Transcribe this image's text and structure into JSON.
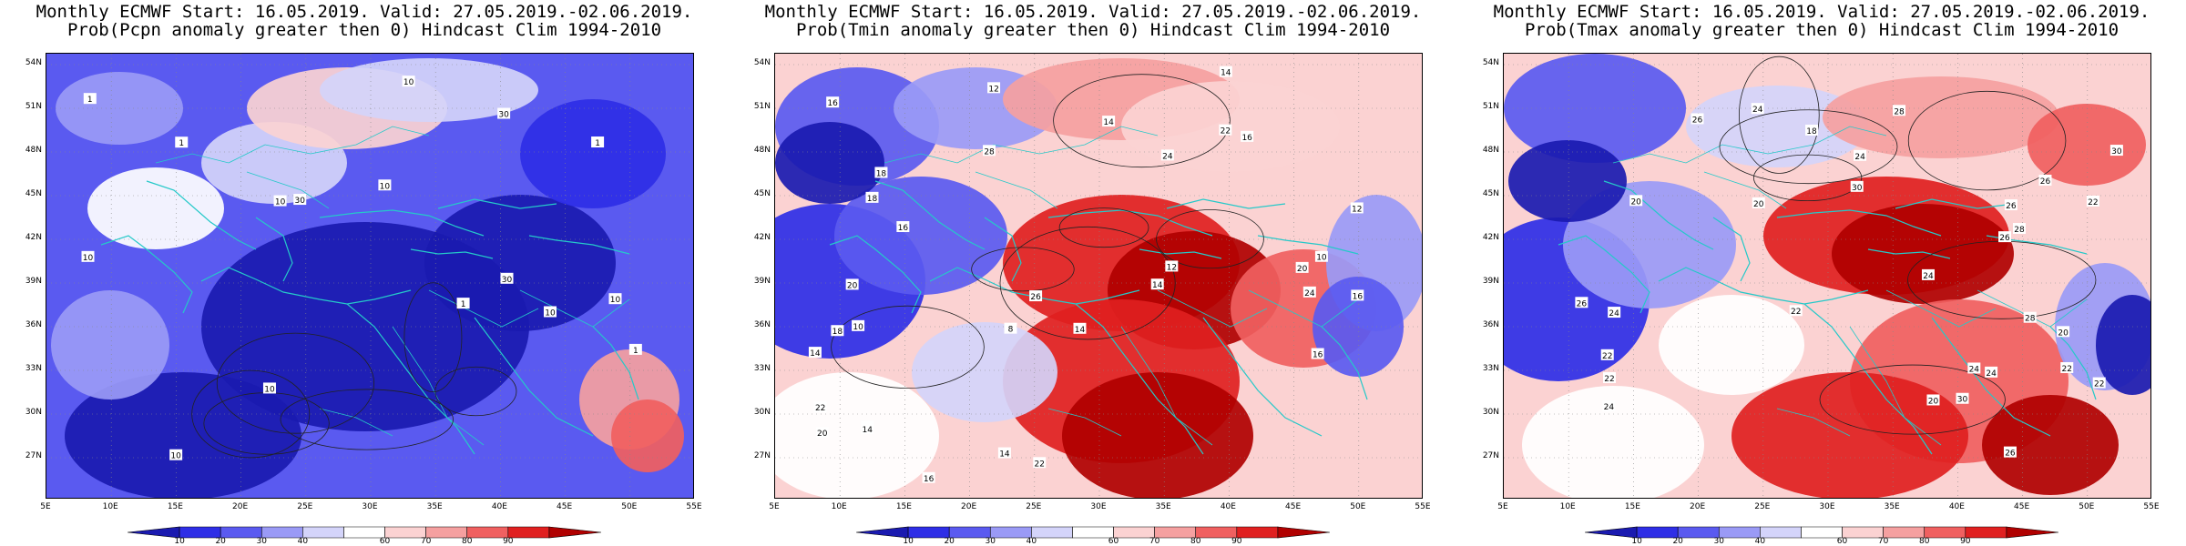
{
  "panels": [
    {
      "title_line1": "Monthly ECMWF Start: 16.05.2019. Valid: 27.05.2019.-02.06.2019.",
      "title_line2": "Prob(Pcpn anomaly greater then 0) Hindcast Clim 1994-2010",
      "variable": "Pcpn",
      "dominant_tone": "blue"
    },
    {
      "title_line1": "Monthly ECMWF Start: 16.05.2019. Valid: 27.05.2019.-02.06.2019.",
      "title_line2": "Prob(Tmin anomaly greater then 0) Hindcast Clim 1994-2010",
      "variable": "Tmin",
      "dominant_tone": "red-east"
    },
    {
      "title_line1": "Monthly ECMWF Start: 16.05.2019. Valid: 27.05.2019.-02.06.2019.",
      "title_line2": "Prob(Tmax anomaly greater then 0) Hindcast Clim 1994-2010",
      "variable": "Tmax",
      "dominant_tone": "red-east"
    }
  ],
  "axes": {
    "lat_labels": [
      "54N",
      "51N",
      "48N",
      "45N",
      "42N",
      "39N",
      "36N",
      "33N",
      "30N",
      "27N"
    ],
    "lon_labels": [
      "5E",
      "10E",
      "15E",
      "20E",
      "25E",
      "30E",
      "35E",
      "40E",
      "45E",
      "50E",
      "55E"
    ]
  },
  "colorbar": {
    "ticks": [
      "10",
      "20",
      "30",
      "40",
      "60",
      "70",
      "80",
      "90"
    ],
    "colors": [
      "#1a1ab0",
      "#2e2ee6",
      "#5a5af0",
      "#9a9af6",
      "#d4d4fa",
      "#ffffff",
      "#fbd2d2",
      "#f5a0a0",
      "#f06060",
      "#e02020",
      "#b00000"
    ]
  },
  "contour_labels": {
    "Pcpn": [
      "10",
      "30",
      "30",
      "10",
      "10",
      "30",
      "10",
      "10",
      "10",
      "1",
      "1",
      "1",
      "10",
      "1",
      "1",
      "10"
    ],
    "Tmin": [
      "12",
      "14",
      "16",
      "14",
      "16",
      "10",
      "8",
      "12",
      "14",
      "16",
      "18",
      "16",
      "14",
      "12",
      "14",
      "10",
      "18",
      "16",
      "22",
      "20",
      "20",
      "22",
      "24",
      "24",
      "28",
      "22",
      "26",
      "12",
      "14",
      "20",
      "18",
      "16",
      "14"
    ],
    "Tmax": [
      "20",
      "22",
      "24",
      "22",
      "24",
      "26",
      "20",
      "18",
      "24",
      "24",
      "20",
      "22",
      "26",
      "28",
      "26",
      "22",
      "20",
      "24",
      "22",
      "30",
      "24",
      "24",
      "28",
      "26",
      "22",
      "26",
      "30",
      "28",
      "30",
      "26"
    ]
  }
}
